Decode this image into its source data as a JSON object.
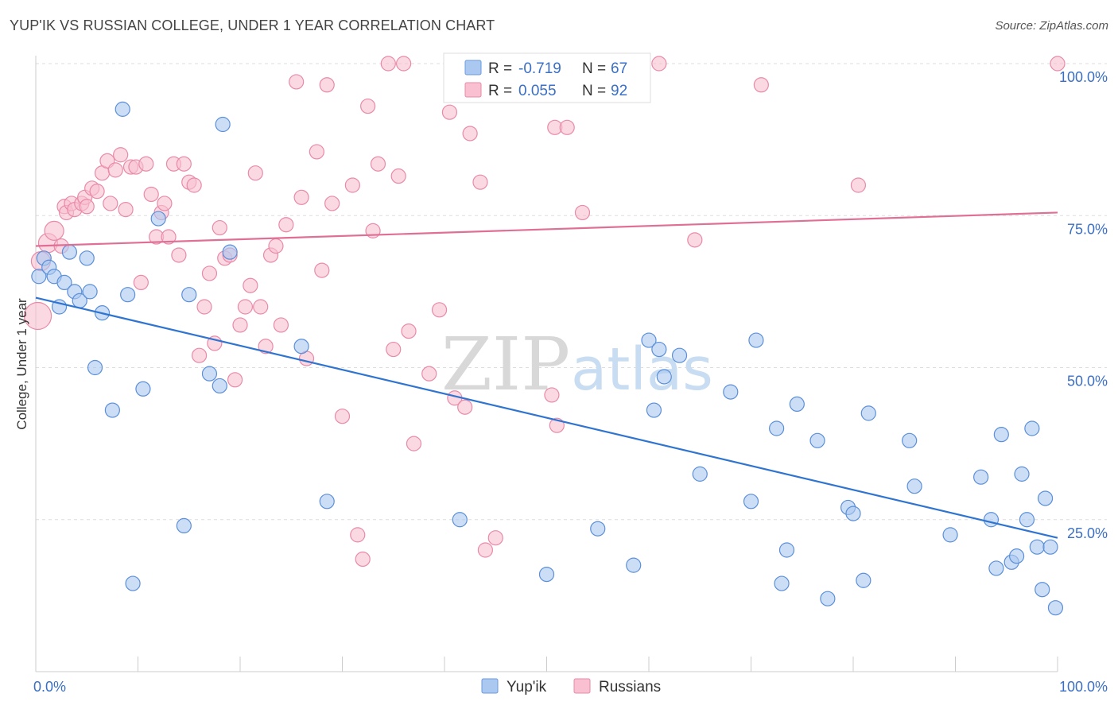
{
  "header": {
    "title": "YUP'IK VS RUSSIAN COLLEGE, UNDER 1 YEAR CORRELATION CHART",
    "source": "Source: ZipAtlas.com"
  },
  "watermark": {
    "zip": "ZIP",
    "atlas": "atlas"
  },
  "legend": {
    "rows": [
      {
        "r_label": "R =",
        "r_value": "-0.719",
        "n_label": "N =",
        "n_value": "67",
        "color": "#aac8f0",
        "stroke": "#6a9ae0"
      },
      {
        "r_label": "R =",
        "r_value": "0.055",
        "n_label": "N =",
        "n_value": "92",
        "color": "#f8c0d0",
        "stroke": "#e88aa8"
      }
    ]
  },
  "chart_data": {
    "type": "scatter",
    "ylabel": "College, Under 1 year",
    "xlim": [
      0,
      100
    ],
    "ylim": [
      0,
      100
    ],
    "x_tick_labels": [
      "0.0%",
      "100.0%"
    ],
    "y_tick_labels": [
      "100.0%",
      "75.0%",
      "50.0%",
      "25.0%"
    ],
    "y_tick_values": [
      100,
      75,
      50,
      25
    ],
    "grid": "horizontal dashed",
    "series": [
      {
        "name": "Yup'ik",
        "fill": "#aac8f0",
        "stroke": "#5b8fd8",
        "line_color": "#2f74d0",
        "trend": [
          [
            0,
            61.5
          ],
          [
            100,
            22
          ]
        ],
        "points": [
          [
            0.3,
            65
          ],
          [
            0.8,
            68
          ],
          [
            1.3,
            66.5
          ],
          [
            1.8,
            65
          ],
          [
            2.3,
            60
          ],
          [
            2.8,
            64
          ],
          [
            3.3,
            69
          ],
          [
            3.8,
            62.5
          ],
          [
            4.3,
            61
          ],
          [
            5.0,
            68
          ],
          [
            5.3,
            62.5
          ],
          [
            5.8,
            50
          ],
          [
            6.5,
            59
          ],
          [
            7.5,
            43
          ],
          [
            8.5,
            92.5
          ],
          [
            9.0,
            62
          ],
          [
            9.5,
            14.5
          ],
          [
            10.5,
            46.5
          ],
          [
            12.0,
            74.5
          ],
          [
            14.5,
            24
          ],
          [
            15.0,
            62
          ],
          [
            17.0,
            49
          ],
          [
            18.0,
            47
          ],
          [
            18.3,
            90
          ],
          [
            19.0,
            69
          ],
          [
            26.0,
            53.5
          ],
          [
            28.5,
            28
          ],
          [
            41.5,
            25
          ],
          [
            50.0,
            16
          ],
          [
            55.0,
            23.5
          ],
          [
            58.5,
            17.5
          ],
          [
            60.0,
            54.5
          ],
          [
            60.5,
            43
          ],
          [
            61.0,
            53
          ],
          [
            61.5,
            48.5
          ],
          [
            63.0,
            52
          ],
          [
            65.0,
            32.5
          ],
          [
            68.0,
            46
          ],
          [
            70.0,
            28
          ],
          [
            70.5,
            54.5
          ],
          [
            72.5,
            40
          ],
          [
            73.0,
            14.5
          ],
          [
            73.5,
            20
          ],
          [
            74.5,
            44
          ],
          [
            76.5,
            38
          ],
          [
            77.5,
            12
          ],
          [
            79.5,
            27
          ],
          [
            80.0,
            26
          ],
          [
            81.0,
            15
          ],
          [
            81.5,
            42.5
          ],
          [
            85.5,
            38
          ],
          [
            86.0,
            30.5
          ],
          [
            89.5,
            22.5
          ],
          [
            92.5,
            32
          ],
          [
            93.5,
            25
          ],
          [
            94.0,
            17
          ],
          [
            94.5,
            39
          ],
          [
            95.5,
            18
          ],
          [
            96.0,
            19
          ],
          [
            96.5,
            32.5
          ],
          [
            97.0,
            25
          ],
          [
            97.5,
            40
          ],
          [
            98.0,
            20.5
          ],
          [
            98.5,
            13.5
          ],
          [
            99.3,
            20.5
          ],
          [
            99.8,
            10.5
          ],
          [
            98.8,
            28.5
          ]
        ]
      },
      {
        "name": "Russians",
        "fill": "#f8c0d0",
        "stroke": "#e88aa8",
        "line_color": "#e06f96",
        "trend": [
          [
            0,
            70
          ],
          [
            100,
            75.5
          ]
        ],
        "points": [
          [
            0.2,
            58.5
          ],
          [
            0.5,
            67.5
          ],
          [
            1.2,
            70.5
          ],
          [
            1.8,
            72.5
          ],
          [
            2.5,
            70
          ],
          [
            2.8,
            76.5
          ],
          [
            3.0,
            75.5
          ],
          [
            3.5,
            77
          ],
          [
            3.8,
            76
          ],
          [
            4.5,
            77
          ],
          [
            4.8,
            78
          ],
          [
            5.0,
            76.5
          ],
          [
            5.5,
            79.5
          ],
          [
            6.0,
            79
          ],
          [
            6.5,
            82
          ],
          [
            7.0,
            84
          ],
          [
            7.3,
            77
          ],
          [
            7.8,
            82.5
          ],
          [
            8.3,
            85
          ],
          [
            8.8,
            76
          ],
          [
            9.3,
            83
          ],
          [
            9.8,
            83
          ],
          [
            10.3,
            64
          ],
          [
            10.8,
            83.5
          ],
          [
            11.3,
            78.5
          ],
          [
            11.8,
            71.5
          ],
          [
            12.3,
            75.5
          ],
          [
            12.6,
            77
          ],
          [
            13.0,
            71.5
          ],
          [
            13.5,
            83.5
          ],
          [
            14.0,
            68.5
          ],
          [
            14.5,
            83.5
          ],
          [
            15.0,
            80.5
          ],
          [
            15.5,
            80
          ],
          [
            16.0,
            52
          ],
          [
            16.5,
            60
          ],
          [
            17.0,
            65.5
          ],
          [
            17.5,
            54
          ],
          [
            18.0,
            73
          ],
          [
            18.5,
            68
          ],
          [
            19.0,
            68.5
          ],
          [
            19.5,
            48
          ],
          [
            20.0,
            57
          ],
          [
            20.5,
            60
          ],
          [
            21.0,
            63.5
          ],
          [
            21.5,
            82
          ],
          [
            22.0,
            60
          ],
          [
            22.5,
            53.5
          ],
          [
            23.0,
            68.5
          ],
          [
            23.5,
            70
          ],
          [
            24.0,
            57
          ],
          [
            24.5,
            73.5
          ],
          [
            25.5,
            97
          ],
          [
            26.0,
            78
          ],
          [
            26.5,
            51.5
          ],
          [
            27.5,
            85.5
          ],
          [
            28.0,
            66
          ],
          [
            28.5,
            96.5
          ],
          [
            29.0,
            77
          ],
          [
            30.0,
            42
          ],
          [
            31.0,
            80
          ],
          [
            31.5,
            22.5
          ],
          [
            32.0,
            18.5
          ],
          [
            32.5,
            93
          ],
          [
            33.0,
            72.5
          ],
          [
            33.5,
            83.5
          ],
          [
            34.5,
            100
          ],
          [
            35.0,
            53
          ],
          [
            35.5,
            81.5
          ],
          [
            36.0,
            100
          ],
          [
            36.5,
            56
          ],
          [
            37.0,
            37.5
          ],
          [
            38.5,
            49
          ],
          [
            39.5,
            59.5
          ],
          [
            40.5,
            92
          ],
          [
            41.0,
            45
          ],
          [
            42.0,
            43.5
          ],
          [
            42.5,
            88.5
          ],
          [
            43.5,
            80.5
          ],
          [
            44.0,
            20
          ],
          [
            45.0,
            22
          ],
          [
            46.0,
            100
          ],
          [
            50.5,
            45.5
          ],
          [
            50.8,
            89.5
          ],
          [
            51.0,
            40.5
          ],
          [
            52.0,
            89.5
          ],
          [
            53.5,
            75.5
          ],
          [
            61.0,
            100
          ],
          [
            64.5,
            71
          ],
          [
            71.0,
            96.5
          ],
          [
            80.5,
            80
          ],
          [
            100.0,
            100
          ]
        ]
      }
    ]
  },
  "bottom_legend": [
    {
      "label": "Yup'ik",
      "fill": "#aac8f0",
      "stroke": "#6a9ae0"
    },
    {
      "label": "Russians",
      "fill": "#f8c0d0",
      "stroke": "#e88aa8"
    }
  ]
}
